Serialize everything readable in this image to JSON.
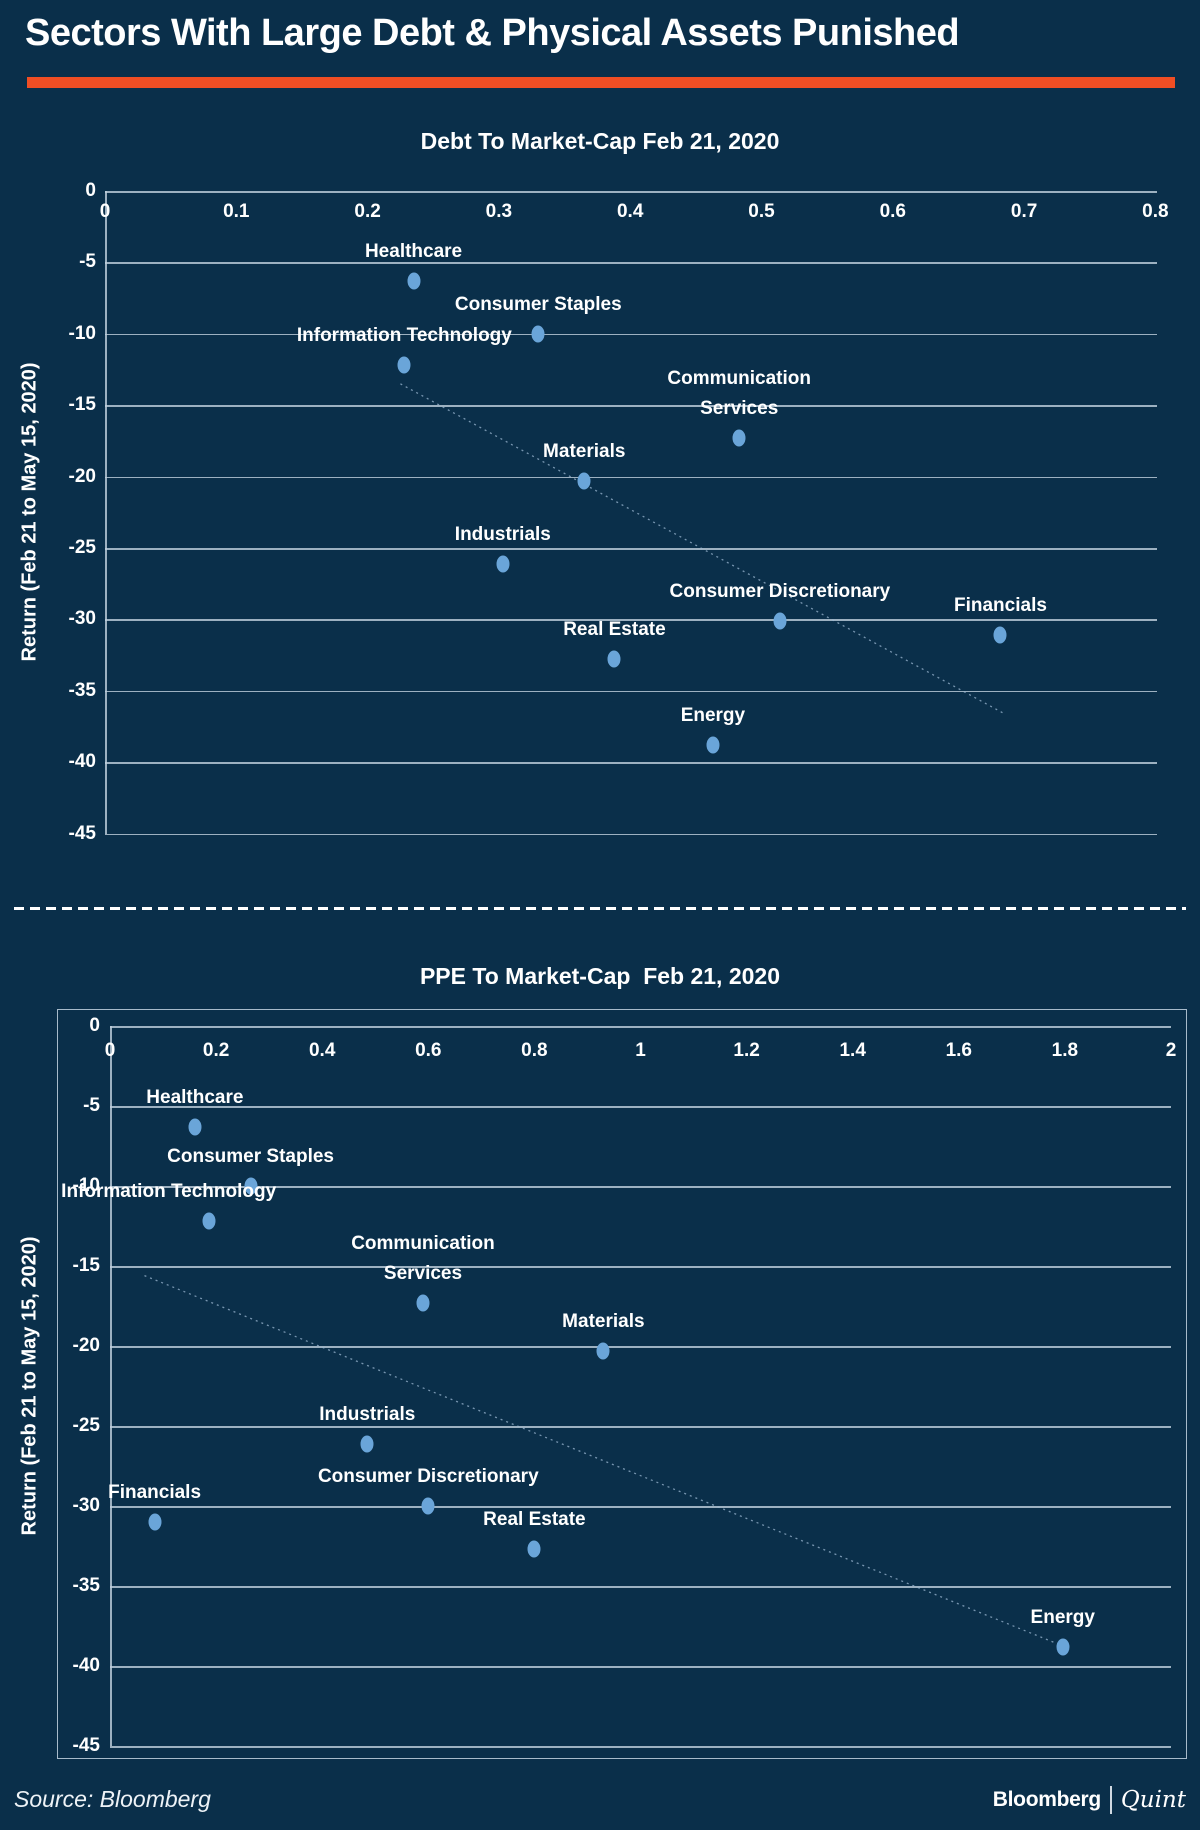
{
  "page": {
    "title": "Sectors With Large Debt & Physical Assets Punished",
    "source_label": "Source: Bloomberg",
    "brand": {
      "bloomberg": "Bloomberg",
      "quint": "Quint"
    },
    "colors": {
      "background": "#0a2f4a",
      "accent_orange": "#f04e24",
      "dot_blue": "#6aa5d9",
      "gridline": "#c2d2de",
      "trendline": "#9db9d3",
      "text": "#ffffff"
    }
  },
  "chart_data": [
    {
      "type": "scatter",
      "title": "Debt To Market-Cap Feb 21, 2020",
      "xlabel": "Debt To Market-Cap Feb 21, 2020",
      "ylabel": "Return (Feb 21 to May 15, 2020)",
      "xlim": [
        0,
        0.8
      ],
      "ylim": [
        0,
        -45
      ],
      "grid": true,
      "legend": "none",
      "xticks": {
        "values": [
          0,
          0.1,
          0.2,
          0.3,
          0.4,
          0.5,
          0.6,
          0.7,
          0.8
        ],
        "labels": [
          "0",
          "0.1",
          "0.2",
          "0.3",
          "0.4",
          "0.5",
          "0.6",
          "0.7",
          "0.8"
        ]
      },
      "yticks": {
        "values": [
          0,
          -5,
          -10,
          -15,
          -20,
          -25,
          -30,
          -35,
          -40,
          -45
        ],
        "labels": [
          "0",
          "-5",
          "-10",
          "-15",
          "-20",
          "-25",
          "-30",
          "-35",
          "-40",
          "-45"
        ]
      },
      "points": [
        {
          "label": "Healthcare",
          "lines": [
            "Healthcare"
          ],
          "x": 0.235,
          "y": -6.3
        },
        {
          "label": "Consumer Staples",
          "lines": [
            "Consumer Staples"
          ],
          "x": 0.33,
          "y": -10.0
        },
        {
          "label": "Information Technology",
          "lines": [
            "Information Technology"
          ],
          "x": 0.228,
          "y": -12.2
        },
        {
          "label": "Communication Services",
          "lines": [
            "Communication",
            "Services"
          ],
          "x": 0.483,
          "y": -17.3
        },
        {
          "label": "Materials",
          "lines": [
            "Materials"
          ],
          "x": 0.365,
          "y": -20.3
        },
        {
          "label": "Industrials",
          "lines": [
            "Industrials"
          ],
          "x": 0.303,
          "y": -26.1
        },
        {
          "label": "Consumer Discretionary",
          "lines": [
            "Consumer Discretionary"
          ],
          "x": 0.514,
          "y": -30.1
        },
        {
          "label": "Financials",
          "lines": [
            "Financials"
          ],
          "x": 0.682,
          "y": -31.1
        },
        {
          "label": "Real Estate",
          "lines": [
            "Real Estate"
          ],
          "x": 0.388,
          "y": -32.8
        },
        {
          "label": "Energy",
          "lines": [
            "Energy"
          ],
          "x": 0.463,
          "y": -38.8
        }
      ],
      "trendline": {
        "x1": 0.225,
        "y1": -13.5,
        "x2": 0.685,
        "y2": -36.6
      }
    },
    {
      "type": "scatter",
      "title": "PPE To Market-Cap  Feb 21, 2020",
      "xlabel": "PPE To Market-Cap Feb 21, 2020",
      "ylabel": "Return (Feb 21 to May 15, 2020)",
      "xlim": [
        0,
        2
      ],
      "ylim": [
        0,
        -45
      ],
      "grid": true,
      "legend": "none",
      "xticks": {
        "values": [
          0,
          0.2,
          0.4,
          0.6,
          0.8,
          1,
          1.2,
          1.4,
          1.6,
          1.8,
          2
        ],
        "labels": [
          "0",
          "0.2",
          "0.4",
          "0.6",
          "0.8",
          "1",
          "1.2",
          "1.4",
          "1.6",
          "1.8",
          "2"
        ]
      },
      "yticks": {
        "values": [
          0,
          -5,
          -10,
          -15,
          -20,
          -25,
          -30,
          -35,
          -40,
          -45
        ],
        "labels": [
          "0",
          "-5",
          "-10",
          "-15",
          "-20",
          "-25",
          "-30",
          "-35",
          "-40",
          "-45"
        ]
      },
      "points": [
        {
          "label": "Healthcare",
          "lines": [
            "Healthcare"
          ],
          "x": 0.16,
          "y": -6.3
        },
        {
          "label": "Consumer Staples",
          "lines": [
            "Consumer Staples"
          ],
          "x": 0.265,
          "y": -10.0
        },
        {
          "label": "Information Technology",
          "lines": [
            "Information Technology"
          ],
          "x": 0.186,
          "y": -12.2,
          "dx": -40
        },
        {
          "label": "Communication Services",
          "lines": [
            "Communication",
            "Services"
          ],
          "x": 0.59,
          "y": -17.3
        },
        {
          "label": "Materials",
          "lines": [
            "Materials"
          ],
          "x": 0.93,
          "y": -20.3
        },
        {
          "label": "Industrials",
          "lines": [
            "Industrials"
          ],
          "x": 0.485,
          "y": -26.1
        },
        {
          "label": "Consumer Discretionary",
          "lines": [
            "Consumer Discretionary"
          ],
          "x": 0.6,
          "y": -30.0
        },
        {
          "label": "Financials",
          "lines": [
            "Financials"
          ],
          "x": 0.084,
          "y": -31.0
        },
        {
          "label": "Real Estate",
          "lines": [
            "Real Estate"
          ],
          "x": 0.8,
          "y": -32.7
        },
        {
          "label": "Energy",
          "lines": [
            "Energy"
          ],
          "x": 1.796,
          "y": -38.8
        }
      ],
      "trendline": {
        "x1": 0.065,
        "y1": -15.6,
        "x2": 1.8,
        "y2": -38.8
      }
    }
  ]
}
